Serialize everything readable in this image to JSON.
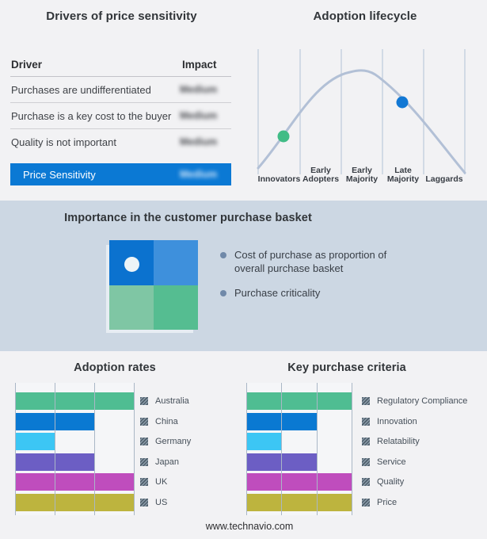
{
  "drivers_panel": {
    "title": "Drivers of price sensitivity",
    "columns": [
      "Driver",
      "Impact"
    ],
    "rows": [
      {
        "driver": "Purchases are undifferentiated",
        "impact": "Medium"
      },
      {
        "driver": "Purchase is a key cost to the buyer",
        "impact": "Medium"
      },
      {
        "driver": "Quality is not important",
        "impact": "Medium"
      }
    ],
    "highlight": {
      "driver": "Price Sensitivity",
      "impact": "Medium",
      "bg": "#0b79d4"
    }
  },
  "basket_panel": {
    "title": "Importance in the customer purchase basket",
    "bullets": [
      "Cost of purchase as proportion of overall purchase basket",
      "Purchase criticality"
    ],
    "quadrant_colors": {
      "top_left": "#0b72cf",
      "top_right": "#3e90dc",
      "bottom_left": "#7fc6a4",
      "bottom_right": "#55bd91"
    },
    "band_bg": "#ccd7e3"
  },
  "chart_data": [
    {
      "type": "line",
      "subtype": "bell-curve",
      "title": "Adoption lifecycle",
      "categories": [
        "Innovators",
        "Early Adopters",
        "Early Majority",
        "Late Majority",
        "Laggards"
      ],
      "curve_color": "#b2c0d6",
      "grid": true,
      "legend_position": "none",
      "markers": [
        {
          "stage": "Innovators",
          "color": "#41bc86"
        },
        {
          "stage": "Late Majority",
          "color": "#1278d4"
        }
      ]
    },
    {
      "type": "bar",
      "orientation": "horizontal",
      "title": "Adoption rates",
      "categories": [
        "Australia",
        "China",
        "Germany",
        "Japan",
        "UK",
        "US"
      ],
      "values": [
        3,
        2,
        1,
        2,
        3,
        3
      ],
      "xlim": [
        0,
        3
      ],
      "grid": true,
      "legend_position": "right",
      "bar_colors": [
        "#4fbd92",
        "#0a79d2",
        "#3cc6f4",
        "#6c5ec4",
        "#bf4dbd",
        "#bdb43e"
      ]
    },
    {
      "type": "bar",
      "orientation": "horizontal",
      "title": "Key purchase criteria",
      "categories": [
        "Regulatory Compliance",
        "Innovation",
        "Relatability",
        "Service",
        "Quality",
        "Price"
      ],
      "values": [
        3,
        2,
        1,
        2,
        3,
        3
      ],
      "xlim": [
        0,
        3
      ],
      "grid": true,
      "legend_position": "right",
      "bar_colors": [
        "#4fbd92",
        "#0a79d2",
        "#3cc6f4",
        "#6c5ec4",
        "#bf4dbd",
        "#bdb43e"
      ]
    }
  ],
  "footer": {
    "url": "www.technavio.com"
  }
}
